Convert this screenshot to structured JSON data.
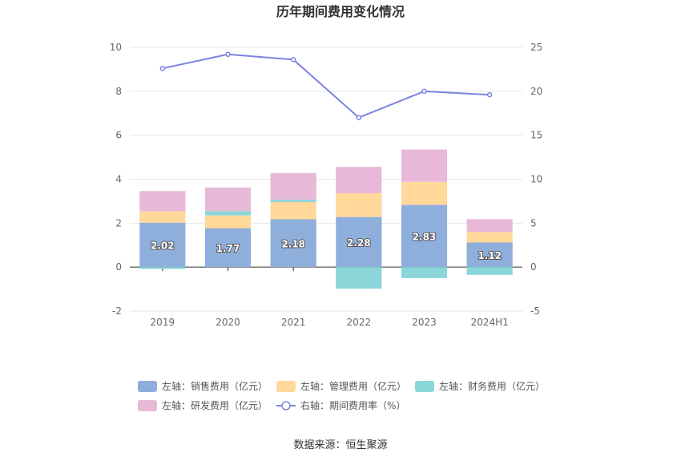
{
  "chart_data": {
    "type": "bar",
    "title": "历年期间费用变化情况",
    "categories": [
      "2019",
      "2020",
      "2021",
      "2022",
      "2023",
      "2024H1"
    ],
    "stacked": true,
    "left_axis": {
      "ylim": [
        -2,
        10
      ],
      "ticks": [
        -2,
        0,
        2,
        4,
        6,
        8,
        10
      ]
    },
    "right_axis": {
      "ylim": [
        -5,
        25
      ],
      "ticks": [
        -5,
        0,
        5,
        10,
        15,
        20,
        25
      ]
    },
    "series": [
      {
        "name": "左轴：销售费用（亿元）",
        "axis": "left",
        "kind": "bar",
        "color": "#8eaedc",
        "values": [
          2.02,
          1.77,
          2.18,
          2.28,
          2.83,
          1.12
        ],
        "labels": [
          "2.02",
          "1.77",
          "2.18",
          "2.28",
          "2.83",
          "1.12"
        ]
      },
      {
        "name": "左轴：管理费用（亿元）",
        "axis": "left",
        "kind": "bar",
        "color": "#ffd89a",
        "values": [
          0.52,
          0.58,
          0.78,
          1.08,
          1.05,
          0.48
        ]
      },
      {
        "name": "左轴：财务费用（亿元）",
        "axis": "left",
        "kind": "bar",
        "color": "#8ad6d9",
        "values": [
          -0.08,
          0.2,
          0.1,
          -0.98,
          -0.5,
          -0.35
        ]
      },
      {
        "name": "左轴：研发费用（亿元）",
        "axis": "left",
        "kind": "bar",
        "color": "#e8b8d8",
        "values": [
          0.92,
          1.07,
          1.22,
          1.2,
          1.47,
          0.58
        ]
      },
      {
        "name": "右轴：期间费用率（%）",
        "axis": "right",
        "kind": "line",
        "color": "#7b84e2",
        "values": [
          22.6,
          24.2,
          23.6,
          17.0,
          20.0,
          19.6
        ]
      }
    ],
    "legend_position": "bottom",
    "grid": true
  },
  "source": "数据来源：恒生聚源"
}
